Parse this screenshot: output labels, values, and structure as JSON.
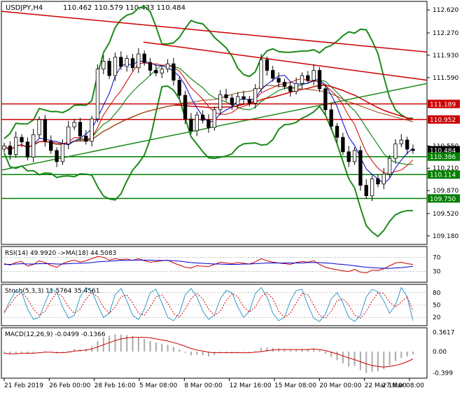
{
  "chart_data": {
    "type": "line",
    "title": "USDJPY,H4",
    "ohlc_readout": "110.462 110.579 110.433 110.484",
    "price_panel": {
      "ylim": [
        109.05,
        112.75
      ],
      "y_ticks": [
        "112.620",
        "112.270",
        "111.930",
        "111.590",
        "110.550",
        "110.210",
        "109.870",
        "109.520",
        "109.180"
      ],
      "price_series": [
        110.55,
        110.42,
        110.68,
        110.61,
        110.38,
        110.72,
        110.95,
        110.62,
        110.48,
        110.31,
        110.58,
        110.84,
        110.91,
        110.7,
        110.62,
        110.96,
        111.72,
        111.84,
        111.62,
        111.9,
        111.76,
        111.88,
        111.74,
        111.95,
        111.82,
        111.7,
        111.66,
        111.72,
        111.8,
        111.55,
        111.32,
        110.96,
        110.78,
        111.02,
        110.94,
        110.83,
        111.1,
        111.33,
        111.28,
        111.18,
        111.3,
        111.26,
        111.2,
        111.42,
        111.86,
        111.7,
        111.58,
        111.52,
        111.46,
        111.38,
        111.5,
        111.62,
        111.55,
        111.7,
        111.42,
        111.1,
        110.85,
        110.68,
        110.46,
        110.31,
        110.48,
        109.95,
        109.79,
        110.05,
        109.97,
        110.12,
        110.36,
        110.58,
        110.64,
        110.5,
        110.48
      ],
      "horizontal_lines": [
        {
          "label": "111.189",
          "value": 111.189,
          "color": "#cc0000"
        },
        {
          "label": "110.952",
          "value": 110.952,
          "color": "#cc0000"
        },
        {
          "label": "110.484",
          "value": 110.484,
          "color": "#000000"
        },
        {
          "label": "110.386",
          "value": 110.386,
          "color": "#008000"
        },
        {
          "label": "110.114",
          "value": 110.114,
          "color": "#008000"
        },
        {
          "label": "109.750",
          "value": 109.75,
          "color": "#008000"
        }
      ]
    },
    "rsi_panel": {
      "label": "RSI(14) 49.9920 ->MA(18) 44.5083",
      "ylim": [
        0,
        100
      ],
      "y_ticks": [
        "70",
        "30"
      ],
      "rsi": [
        52,
        48,
        55,
        58,
        45,
        50,
        60,
        55,
        47,
        42,
        52,
        58,
        62,
        56,
        60,
        66,
        72,
        70,
        62,
        66,
        63,
        65,
        61,
        66,
        60,
        56,
        58,
        60,
        62,
        54,
        48,
        42,
        40,
        46,
        45,
        44,
        50,
        56,
        54,
        52,
        55,
        53,
        51,
        57,
        66,
        60,
        56,
        54,
        52,
        50,
        55,
        58,
        56,
        60,
        50,
        42,
        38,
        35,
        32,
        30,
        36,
        28,
        26,
        34,
        33,
        38,
        46,
        54,
        56,
        52,
        50
      ],
      "ma": [
        50,
        50,
        51,
        52,
        51,
        51,
        52,
        52,
        52,
        51,
        51,
        52,
        53,
        53,
        54,
        55,
        57,
        58,
        59,
        60,
        61,
        61,
        62,
        62,
        62,
        62,
        61,
        61,
        61,
        60,
        59,
        57,
        55,
        54,
        53,
        52,
        51,
        51,
        50,
        50,
        50,
        51,
        51,
        52,
        53,
        54,
        54,
        54,
        54,
        54,
        54,
        54,
        55,
        55,
        55,
        54,
        53,
        51,
        50,
        48,
        46,
        44,
        42,
        41,
        40,
        39,
        39,
        40,
        41,
        43,
        44.5
      ]
    },
    "stoch_panel": {
      "label": "Stoch(5,3,3) 11.5764 35.4561",
      "ylim": [
        0,
        100
      ],
      "y_ticks": [
        "80",
        "50",
        "20"
      ],
      "k": [
        30,
        60,
        85,
        80,
        40,
        15,
        20,
        55,
        88,
        82,
        45,
        18,
        25,
        70,
        92,
        85,
        50,
        20,
        30,
        75,
        90,
        60,
        25,
        15,
        40,
        80,
        88,
        55,
        20,
        12,
        30,
        75,
        90,
        70,
        35,
        15,
        25,
        65,
        85,
        80,
        45,
        20,
        35,
        78,
        92,
        70,
        30,
        12,
        20,
        60,
        85,
        88,
        50,
        18,
        10,
        28,
        65,
        80,
        55,
        20,
        10,
        25,
        70,
        88,
        82,
        60,
        30,
        50,
        92,
        70,
        12
      ],
      "d": [
        35,
        50,
        70,
        80,
        65,
        40,
        25,
        35,
        60,
        80,
        70,
        45,
        30,
        40,
        65,
        80,
        70,
        45,
        30,
        45,
        70,
        75,
        55,
        30,
        25,
        45,
        70,
        75,
        55,
        30,
        20,
        40,
        65,
        78,
        65,
        40,
        25,
        35,
        60,
        78,
        70,
        45,
        33,
        45,
        70,
        80,
        65,
        35,
        20,
        30,
        55,
        78,
        75,
        50,
        25,
        18,
        35,
        60,
        65,
        50,
        25,
        18,
        35,
        60,
        80,
        78,
        57,
        45,
        57,
        70,
        35.5
      ]
    },
    "macd_panel": {
      "label": "MACD(12,26,9) -0.0499 -0.1366",
      "ylim": [
        -0.5,
        0.45
      ],
      "y_ticks": [
        "0.3617",
        "0.00",
        "-0.399"
      ],
      "histogram": [
        -0.03,
        -0.05,
        -0.04,
        -0.02,
        -0.04,
        -0.03,
        0.0,
        0.01,
        -0.01,
        -0.03,
        -0.02,
        0.02,
        0.05,
        0.04,
        0.05,
        0.1,
        0.2,
        0.27,
        0.3,
        0.33,
        0.32,
        0.31,
        0.29,
        0.27,
        0.24,
        0.2,
        0.17,
        0.15,
        0.13,
        0.09,
        0.04,
        -0.02,
        -0.07,
        -0.06,
        -0.07,
        -0.09,
        -0.06,
        -0.02,
        -0.02,
        -0.03,
        -0.01,
        -0.01,
        -0.02,
        0.01,
        0.07,
        0.08,
        0.07,
        0.06,
        0.05,
        0.03,
        0.04,
        0.05,
        0.05,
        0.06,
        0.03,
        -0.04,
        -0.1,
        -0.16,
        -0.22,
        -0.28,
        -0.27,
        -0.35,
        -0.4,
        -0.38,
        -0.37,
        -0.33,
        -0.26,
        -0.18,
        -0.12,
        -0.09,
        -0.05
      ],
      "signal": [
        -0.03,
        -0.04,
        -0.04,
        -0.03,
        -0.03,
        -0.03,
        -0.02,
        -0.01,
        -0.01,
        -0.02,
        -0.02,
        -0.01,
        0.01,
        0.02,
        0.03,
        0.05,
        0.09,
        0.13,
        0.17,
        0.21,
        0.24,
        0.26,
        0.27,
        0.27,
        0.27,
        0.26,
        0.24,
        0.22,
        0.2,
        0.17,
        0.14,
        0.1,
        0.06,
        0.03,
        0.01,
        -0.01,
        -0.02,
        -0.02,
        -0.02,
        -0.02,
        -0.02,
        -0.02,
        -0.02,
        -0.01,
        0.0,
        0.02,
        0.03,
        0.04,
        0.04,
        0.04,
        0.04,
        0.04,
        0.04,
        0.05,
        0.04,
        0.02,
        -0.01,
        -0.04,
        -0.08,
        -0.12,
        -0.15,
        -0.19,
        -0.23,
        -0.26,
        -0.28,
        -0.29,
        -0.28,
        -0.26,
        -0.23,
        -0.19,
        -0.1366
      ]
    },
    "x_labels": [
      "21 Feb 2019",
      "26 Feb 00:00",
      "28 Feb 16:00",
      "5 Mar 08:00",
      "8 Mar 00:00",
      "12 Mar 16:00",
      "15 Mar 08:00",
      "20 Mar 00:00",
      "22 Mar 16:00",
      "27 Mar 08:00"
    ]
  }
}
